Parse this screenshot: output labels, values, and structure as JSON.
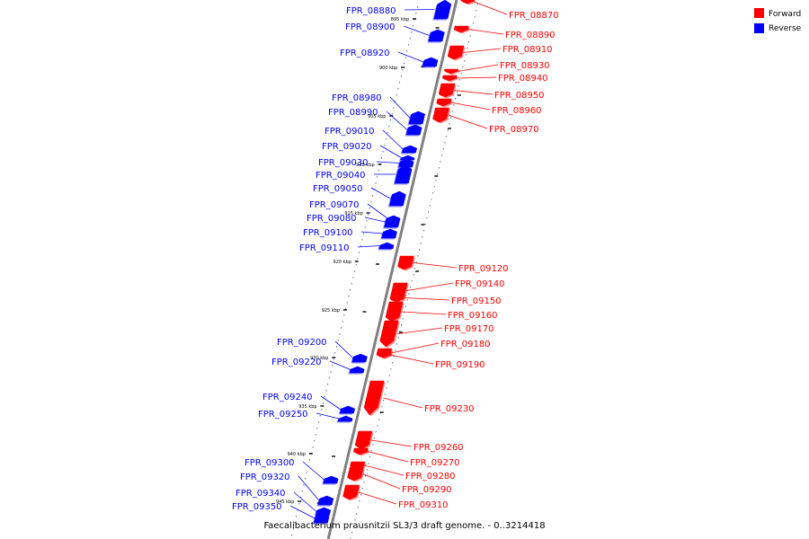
{
  "colors": {
    "forward": "#ff0000",
    "reverse": "#0000ff",
    "axis": "#808080"
  },
  "legend": {
    "forward": "Forward",
    "reverse": "Reverse"
  },
  "footer": "Faecalibacterium prausnitzii SL3/3 draft genome. - 0..3214418",
  "ticks": [
    "895 kbp",
    "900 kbp",
    "905 kbp",
    "910 kbp",
    "915 kbp",
    "920 kbp",
    "925 kbp",
    "930 kbp",
    "935 kbp",
    "940 kbp",
    "945 kbp"
  ],
  "genes": {
    "reverse": [
      "FPR_08880",
      "FPR_08900",
      "FPR_08920",
      "FPR_08980",
      "FPR_08990",
      "FPR_09010",
      "FPR_09020",
      "FPR_09030",
      "FPR_09040",
      "FPR_09050",
      "FPR_09070",
      "FPR_09080",
      "FPR_09100",
      "FPR_09110",
      "FPR_09200",
      "FPR_09220",
      "FPR_09240",
      "FPR_09250",
      "FPR_09300",
      "FPR_09320",
      "FPR_09340",
      "FPR_09350"
    ],
    "forward": [
      "FPR_08870",
      "FPR_08890",
      "FPR_08910",
      "FPR_08930",
      "FPR_08940",
      "FPR_08950",
      "FPR_08960",
      "FPR_08970",
      "FPR_09120",
      "FPR_09140",
      "FPR_09150",
      "FPR_09160",
      "FPR_09170",
      "FPR_09180",
      "FPR_09190",
      "FPR_09230",
      "FPR_09260",
      "FPR_09270",
      "FPR_09280",
      "FPR_09290",
      "FPR_09310"
    ]
  }
}
